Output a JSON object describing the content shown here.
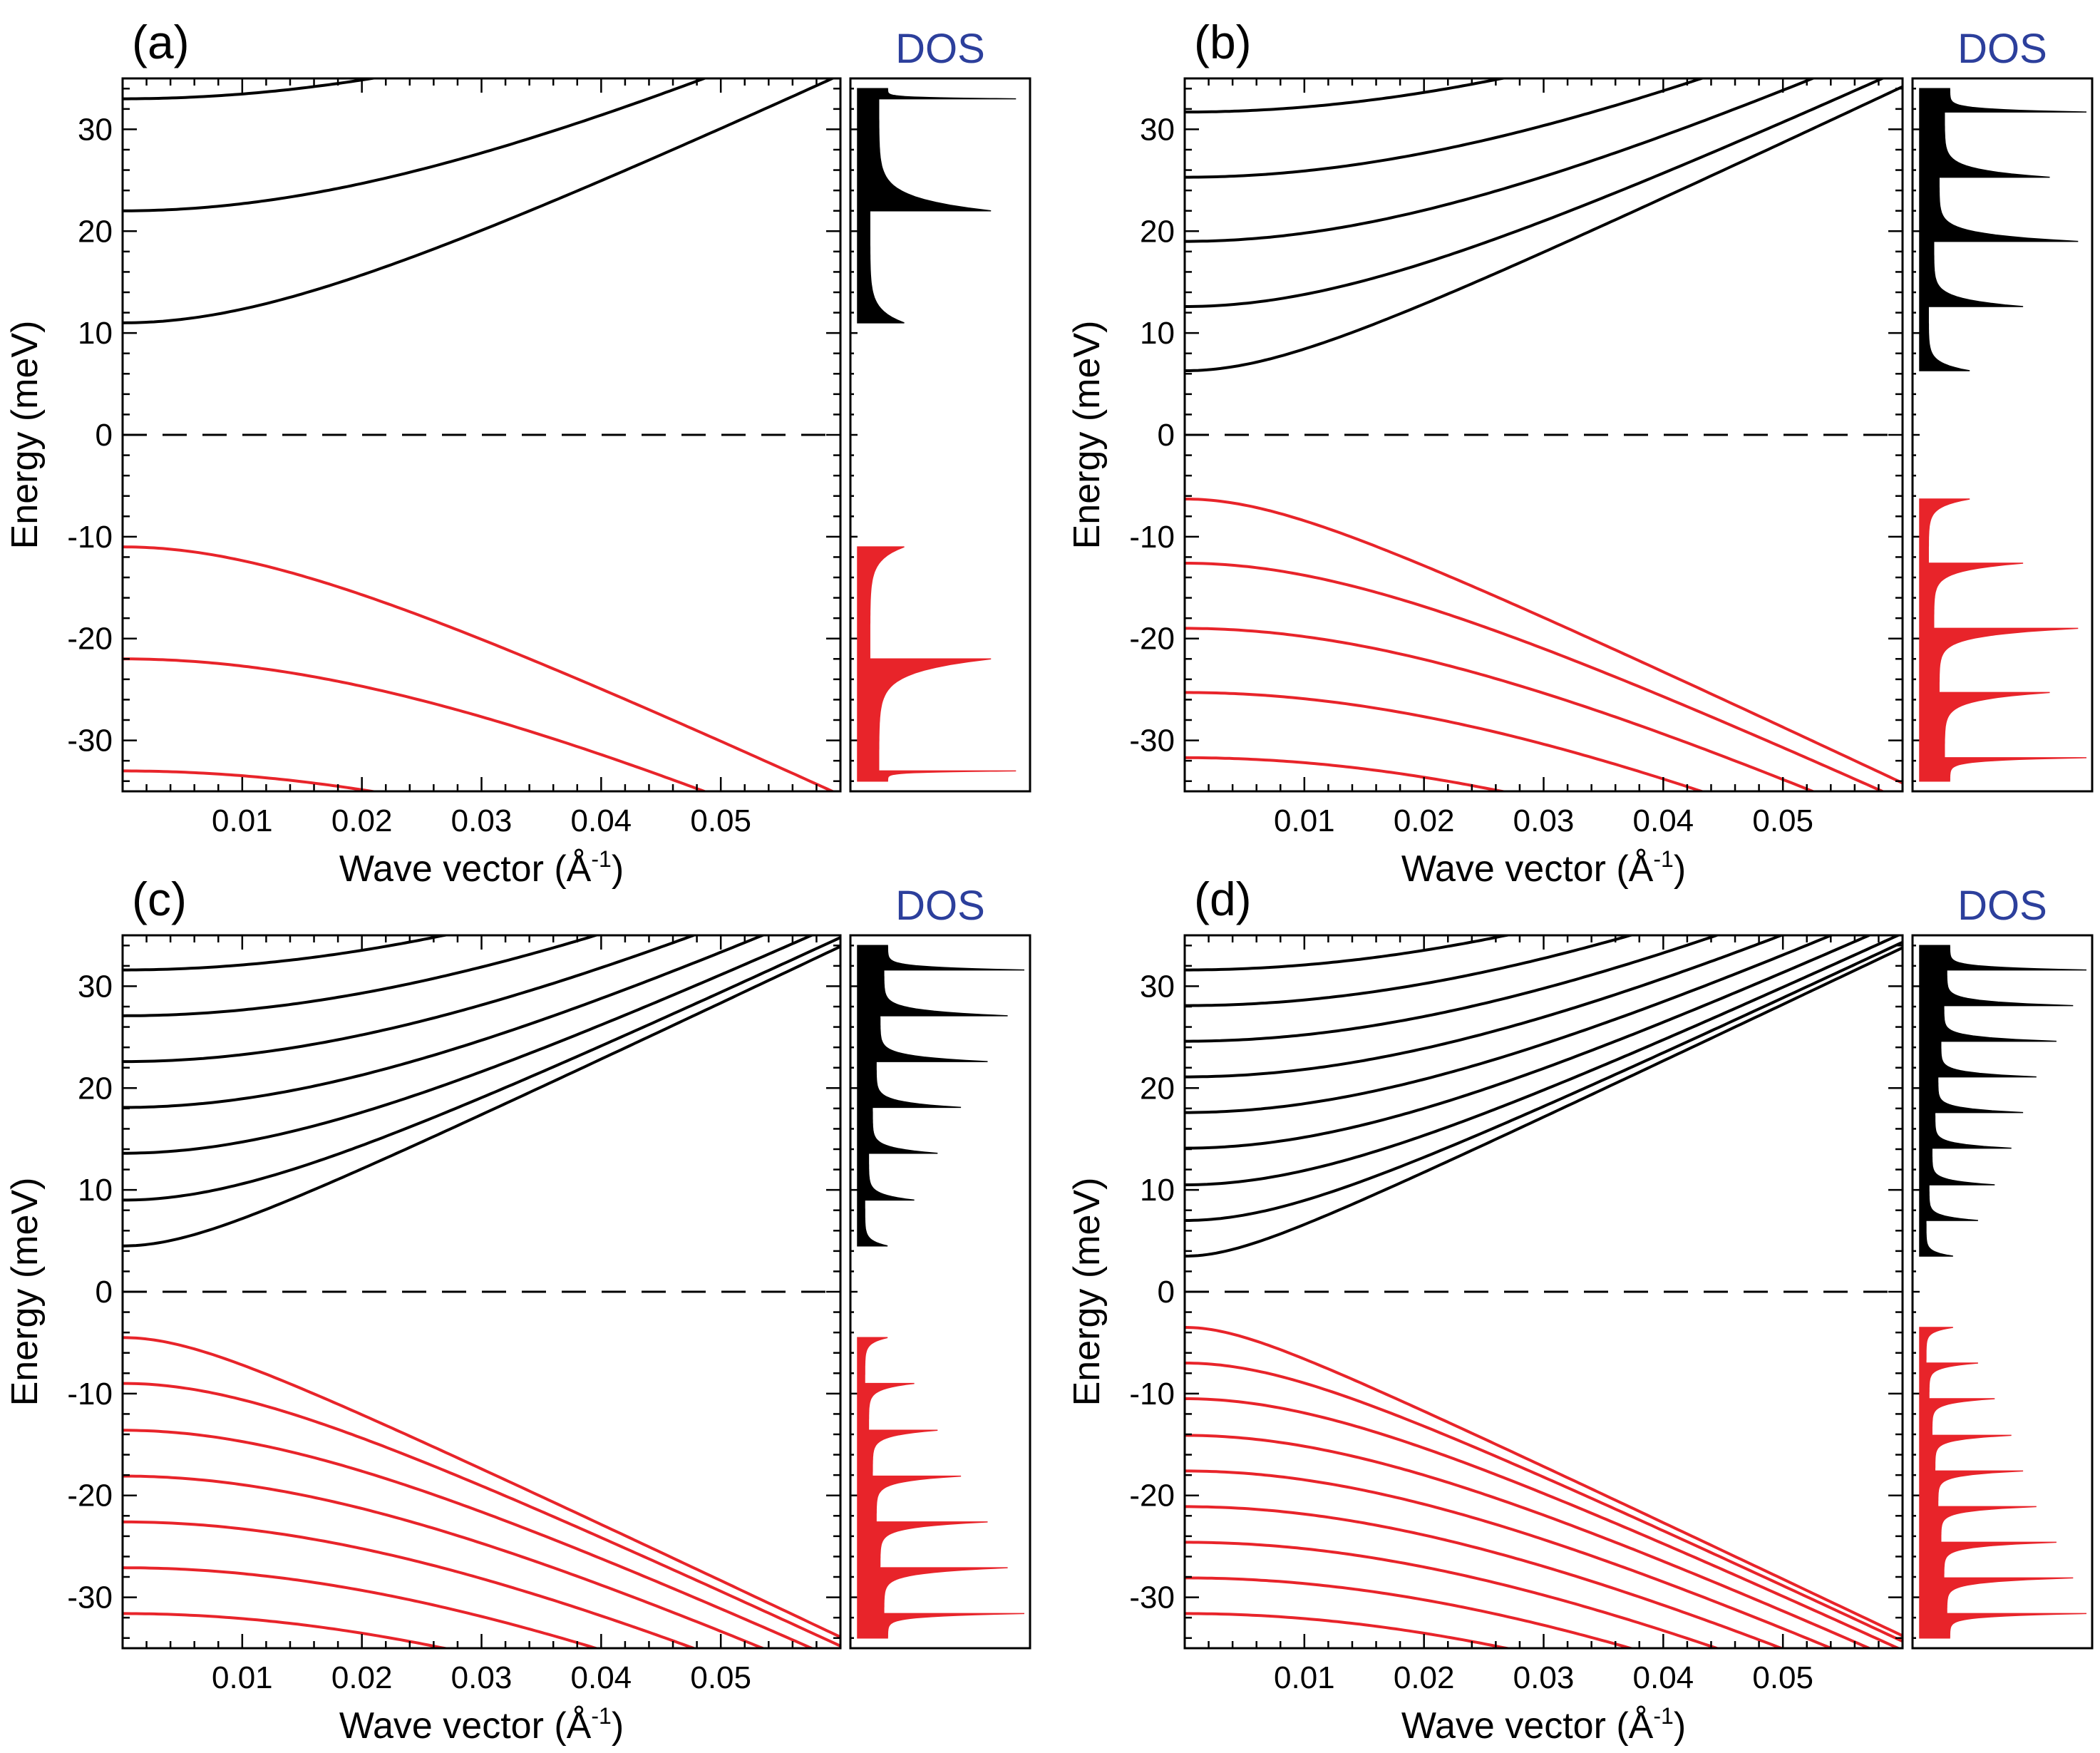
{
  "figure": {
    "colors": {
      "conduction": "#000000",
      "valence": "#e8242a",
      "dos_title": "#2c3f9c"
    }
  },
  "chart_data": [
    {
      "type": "line",
      "panel_label": "(a)",
      "dos_title": "DOS",
      "xlabel": "Wave vector (Å",
      "xlabel_sup": "-1",
      "xlabel_close": ")",
      "ylabel": "Energy (meV)",
      "xlim": [
        0,
        0.06
      ],
      "ylim": [
        -35,
        35
      ],
      "x_ticks": [
        "0.01",
        "0.02",
        "0.03",
        "0.04",
        "0.05"
      ],
      "y_ticks": [
        "30",
        "20",
        "10",
        "0",
        "-10",
        "-20",
        "-30"
      ],
      "zero_line": "dashed",
      "conduction_band_minima": [
        11,
        22,
        33
      ],
      "valence_band_maxima": [
        -11,
        -22,
        -33
      ],
      "dos_peak_heights": [
        0.28,
        0.8,
        0.95
      ]
    },
    {
      "type": "line",
      "panel_label": "(b)",
      "dos_title": "DOS",
      "xlabel": "Wave vector (Å",
      "xlabel_sup": "-1",
      "xlabel_close": ")",
      "ylabel": "Energy (meV)",
      "xlim": [
        0,
        0.06
      ],
      "ylim": [
        -35,
        35
      ],
      "x_ticks": [
        "0.01",
        "0.02",
        "0.03",
        "0.04",
        "0.05"
      ],
      "y_ticks": [
        "30",
        "20",
        "10",
        "0",
        "-10",
        "-20",
        "-30"
      ],
      "zero_line": "dashed",
      "conduction_band_minima": [
        6.3,
        12.6,
        19,
        25.3,
        31.7
      ],
      "valence_band_maxima": [
        -6.3,
        -12.6,
        -19,
        -25.3,
        -31.7
      ],
      "dos_peak_heights": [
        0.3,
        0.62,
        0.95,
        0.78,
        1.0
      ]
    },
    {
      "type": "line",
      "panel_label": "(c)",
      "dos_title": "DOS",
      "xlabel": "Wave vector (Å",
      "xlabel_sup": "-1",
      "xlabel_close": ")",
      "ylabel": "Energy (meV)",
      "xlim": [
        0,
        0.06
      ],
      "ylim": [
        -35,
        35
      ],
      "x_ticks": [
        "0.01",
        "0.02",
        "0.03",
        "0.04",
        "0.05"
      ],
      "y_ticks": [
        "30",
        "20",
        "10",
        "0",
        "-10",
        "-20",
        "-30"
      ],
      "zero_line": "dashed",
      "conduction_band_minima": [
        4.5,
        9,
        13.6,
        18.1,
        22.6,
        27.1,
        31.6
      ],
      "valence_band_maxima": [
        -4.5,
        -9,
        -13.6,
        -18.1,
        -22.6,
        -27.1,
        -31.6
      ],
      "dos_peak_heights": [
        0.18,
        0.34,
        0.48,
        0.62,
        0.78,
        0.9,
        1.0
      ]
    },
    {
      "type": "line",
      "panel_label": "(d)",
      "dos_title": "DOS",
      "xlabel": "Wave vector (Å",
      "xlabel_sup": "-1",
      "xlabel_close": ")",
      "ylabel": "Energy (meV)",
      "xlim": [
        0,
        0.06
      ],
      "ylim": [
        -35,
        35
      ],
      "x_ticks": [
        "0.01",
        "0.02",
        "0.03",
        "0.04",
        "0.05"
      ],
      "y_ticks": [
        "30",
        "20",
        "10",
        "0",
        "-10",
        "-20",
        "-30"
      ],
      "zero_line": "dashed",
      "conduction_band_minima": [
        3.5,
        7,
        10.5,
        14.1,
        17.6,
        21.1,
        24.6,
        28.1,
        31.6
      ],
      "valence_band_maxima": [
        -3.5,
        -7,
        -10.5,
        -14.1,
        -17.6,
        -21.1,
        -24.6,
        -28.1,
        -31.6
      ],
      "dos_peak_heights": [
        0.2,
        0.35,
        0.45,
        0.55,
        0.62,
        0.7,
        0.82,
        0.92,
        1.0
      ]
    }
  ]
}
